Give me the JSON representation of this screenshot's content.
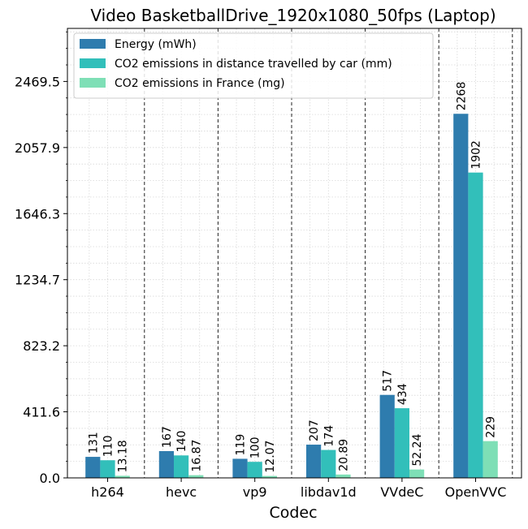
{
  "chart_data": {
    "type": "bar",
    "title": "Video BasketballDrive_1920x1080_50fps (Laptop)",
    "xlabel": "Codec",
    "ylabel": "",
    "categories": [
      "h264",
      "hevc",
      "vp9",
      "libdav1d",
      "VVdeC",
      "OpenVVC"
    ],
    "series": [
      {
        "name": "Energy (mWh)",
        "color": "#2e7cae",
        "values": [
          131,
          167,
          119,
          207,
          517,
          2268
        ],
        "labels": [
          "131",
          "167",
          "119",
          "207",
          "517",
          "2268"
        ]
      },
      {
        "name": "CO2 emissions in distance travelled by car (mm)",
        "color": "#32bfba",
        "values": [
          110,
          140,
          100,
          174,
          434,
          1902
        ],
        "labels": [
          "110",
          "140",
          "100",
          "174",
          "434",
          "1902"
        ]
      },
      {
        "name": "CO2 emissions in France (mg)",
        "color": "#7edfb6",
        "values": [
          13.18,
          16.87,
          12.07,
          20.89,
          52.24,
          229
        ],
        "labels": [
          "13.18",
          "16.87",
          "12.07",
          "20.89",
          "52.24",
          "229"
        ]
      }
    ],
    "yticks": [
      0,
      411.6,
      823.2,
      1234.7,
      1646.3,
      2057.9,
      2469.5
    ],
    "ytick_labels": [
      "0.0",
      "411.6",
      "823.2",
      "1234.7",
      "1646.3",
      "2057.9",
      "2469.5"
    ],
    "ylim": [
      0,
      2800
    ],
    "grid": true,
    "legend_position": "top-left"
  }
}
